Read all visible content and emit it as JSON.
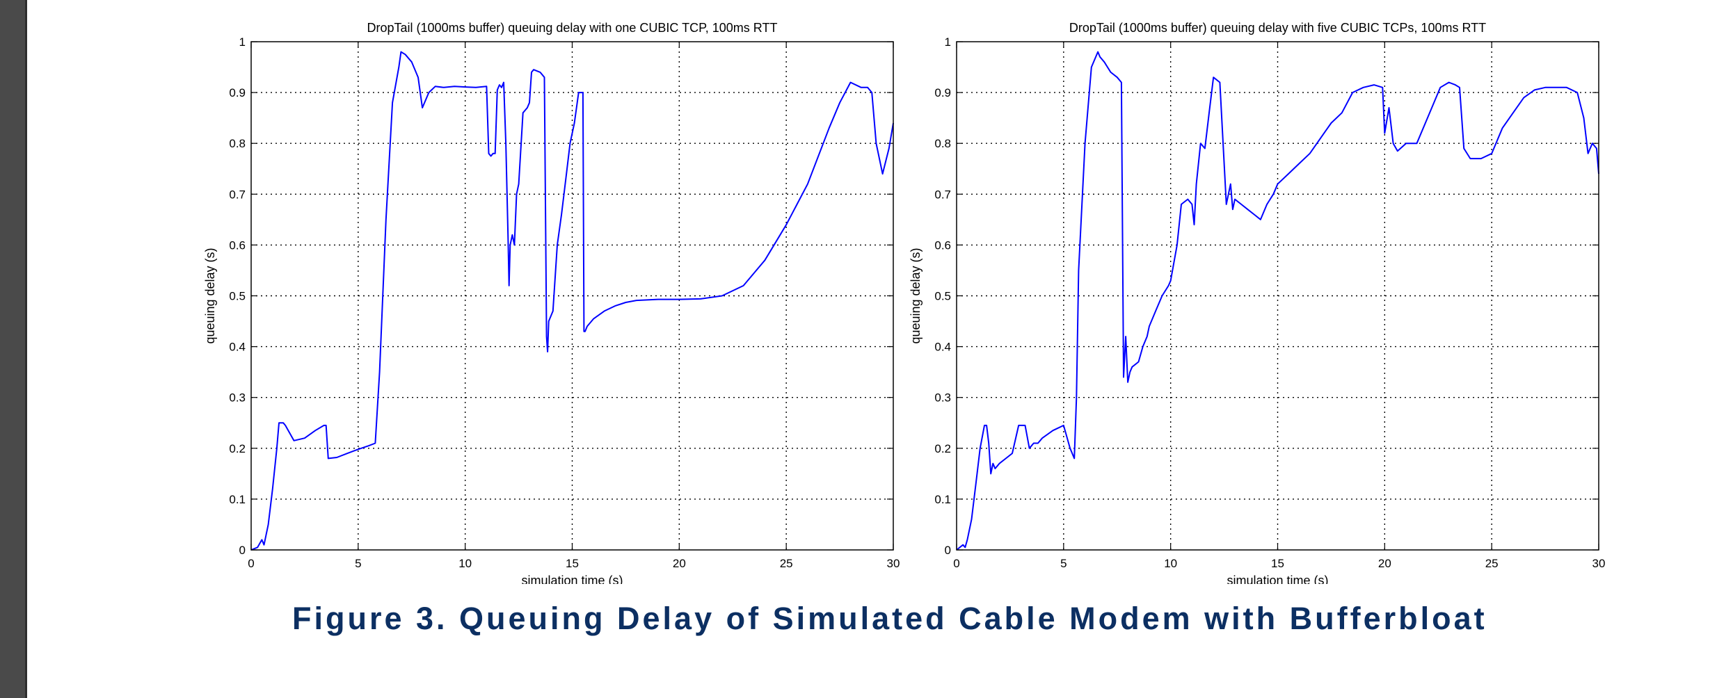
{
  "caption": "Figure 3.  Queuing Delay of Simulated Cable Modem with Bufferbloat",
  "colors": {
    "line": "#0000ff",
    "caption": "#0c2f62",
    "left_bar": "#4a4a4a"
  },
  "chart_data": [
    {
      "type": "line",
      "title": "DropTail (1000ms buffer) queuing delay with one CUBIC TCP, 100ms RTT",
      "xlabel": "simulation time (s)",
      "ylabel": "queuing delay (s)",
      "xlim": [
        0,
        30
      ],
      "ylim": [
        0,
        1
      ],
      "xticks": [
        "0",
        "5",
        "10",
        "15",
        "20",
        "25",
        "30"
      ],
      "yticks": [
        "0",
        "0.1",
        "0.2",
        "0.3",
        "0.4",
        "0.5",
        "0.6",
        "0.7",
        "0.8",
        "0.9",
        "1"
      ],
      "grid": true,
      "series": [
        {
          "x": [
            0,
            0.3,
            0.5,
            0.6,
            0.8,
            1.0,
            1.2,
            1.3,
            1.5,
            1.6,
            2.0,
            2.5,
            3.0,
            3.4,
            3.5,
            3.6,
            4.0,
            4.5,
            5.0,
            5.5,
            5.8,
            6.0,
            6.3,
            6.6,
            6.9,
            7.0,
            7.2,
            7.5,
            7.8,
            8.0,
            8.3,
            8.6,
            9.0,
            9.5,
            10.0,
            10.5,
            11.0,
            11.1,
            11.2,
            11.3,
            11.4,
            11.5,
            11.6,
            11.7,
            11.8,
            11.9,
            12.0,
            12.05,
            12.1,
            12.2,
            12.3,
            12.4,
            12.5,
            12.7,
            12.9,
            13.0,
            13.1,
            13.2,
            13.5,
            13.7,
            13.8,
            13.85,
            13.9,
            14.1,
            14.3,
            14.5,
            14.7,
            14.9,
            15.1,
            15.3,
            15.5,
            15.55,
            15.6,
            15.7,
            16.0,
            16.5,
            17.0,
            17.5,
            18.0,
            19.0,
            20.0,
            21.0,
            22.0,
            23.0,
            24.0,
            25.0,
            26.0,
            27.0,
            27.5,
            28.0,
            28.5,
            28.8,
            29.0,
            29.2,
            29.5,
            29.8,
            30.0
          ],
          "values": [
            0,
            0.005,
            0.02,
            0.01,
            0.05,
            0.12,
            0.2,
            0.25,
            0.25,
            0.245,
            0.215,
            0.22,
            0.235,
            0.245,
            0.245,
            0.18,
            0.182,
            0.19,
            0.198,
            0.205,
            0.21,
            0.35,
            0.65,
            0.88,
            0.95,
            0.98,
            0.975,
            0.96,
            0.93,
            0.87,
            0.9,
            0.912,
            0.91,
            0.912,
            0.911,
            0.91,
            0.912,
            0.78,
            0.775,
            0.78,
            0.78,
            0.905,
            0.915,
            0.91,
            0.92,
            0.8,
            0.62,
            0.52,
            0.6,
            0.62,
            0.6,
            0.7,
            0.72,
            0.86,
            0.87,
            0.88,
            0.94,
            0.945,
            0.94,
            0.93,
            0.42,
            0.39,
            0.45,
            0.47,
            0.6,
            0.66,
            0.73,
            0.8,
            0.84,
            0.9,
            0.9,
            0.43,
            0.43,
            0.44,
            0.455,
            0.47,
            0.48,
            0.487,
            0.491,
            0.493,
            0.493,
            0.494,
            0.5,
            0.52,
            0.57,
            0.64,
            0.72,
            0.83,
            0.88,
            0.92,
            0.91,
            0.91,
            0.9,
            0.8,
            0.74,
            0.79,
            0.84
          ]
        }
      ]
    },
    {
      "type": "line",
      "title": "DropTail (1000ms buffer) queuing delay with five CUBIC TCPs, 100ms RTT",
      "xlabel": "simulation time (s)",
      "ylabel": "queuing delay (s)",
      "xlim": [
        0,
        30
      ],
      "ylim": [
        0,
        1
      ],
      "xticks": [
        "0",
        "5",
        "10",
        "15",
        "20",
        "25",
        "30"
      ],
      "yticks": [
        "0",
        "0.1",
        "0.2",
        "0.3",
        "0.4",
        "0.5",
        "0.6",
        "0.7",
        "0.8",
        "0.9",
        "1"
      ],
      "grid": true,
      "series": [
        {
          "x": [
            0,
            0.3,
            0.4,
            0.5,
            0.7,
            0.9,
            1.1,
            1.3,
            1.4,
            1.5,
            1.6,
            1.7,
            1.8,
            2.0,
            2.3,
            2.6,
            2.9,
            3.2,
            3.4,
            3.6,
            3.8,
            4.0,
            4.5,
            5.0,
            5.3,
            5.5,
            5.6,
            5.7,
            6.0,
            6.3,
            6.6,
            6.7,
            6.9,
            7.2,
            7.5,
            7.7,
            7.8,
            7.9,
            8.0,
            8.1,
            8.2,
            8.5,
            8.7,
            8.9,
            9.0,
            9.3,
            9.6,
            9.9,
            10.0,
            10.3,
            10.5,
            10.8,
            11.0,
            11.1,
            11.2,
            11.4,
            11.6,
            11.8,
            12.0,
            12.3,
            12.6,
            12.8,
            12.9,
            13.0,
            13.3,
            13.6,
            13.9,
            14.2,
            14.5,
            14.8,
            15.0,
            15.5,
            16.0,
            16.5,
            17.0,
            17.5,
            18.0,
            18.5,
            19.0,
            19.5,
            19.9,
            20.0,
            20.2,
            20.4,
            20.6,
            21.0,
            21.5,
            22.0,
            22.3,
            22.6,
            23.0,
            23.3,
            23.5,
            23.7,
            24.0,
            24.5,
            25.0,
            25.5,
            26.0,
            26.5,
            27.0,
            27.5,
            28.0,
            28.5,
            29.0,
            29.3,
            29.5,
            29.7,
            29.9,
            30.0
          ],
          "values": [
            0,
            0.01,
            0.005,
            0.02,
            0.06,
            0.13,
            0.2,
            0.245,
            0.245,
            0.21,
            0.15,
            0.17,
            0.16,
            0.17,
            0.18,
            0.19,
            0.245,
            0.245,
            0.2,
            0.21,
            0.21,
            0.22,
            0.235,
            0.245,
            0.2,
            0.18,
            0.3,
            0.55,
            0.8,
            0.95,
            0.98,
            0.97,
            0.96,
            0.94,
            0.93,
            0.92,
            0.34,
            0.42,
            0.33,
            0.35,
            0.36,
            0.37,
            0.4,
            0.42,
            0.44,
            0.47,
            0.5,
            0.52,
            0.53,
            0.6,
            0.68,
            0.69,
            0.68,
            0.64,
            0.72,
            0.8,
            0.79,
            0.86,
            0.93,
            0.92,
            0.68,
            0.72,
            0.67,
            0.69,
            0.68,
            0.67,
            0.66,
            0.65,
            0.68,
            0.7,
            0.72,
            0.74,
            0.76,
            0.78,
            0.81,
            0.84,
            0.86,
            0.9,
            0.91,
            0.915,
            0.91,
            0.82,
            0.87,
            0.8,
            0.785,
            0.8,
            0.8,
            0.85,
            0.88,
            0.91,
            0.92,
            0.915,
            0.91,
            0.79,
            0.77,
            0.77,
            0.78,
            0.83,
            0.86,
            0.89,
            0.905,
            0.91,
            0.91,
            0.91,
            0.9,
            0.85,
            0.78,
            0.8,
            0.79,
            0.74
          ]
        }
      ]
    }
  ]
}
